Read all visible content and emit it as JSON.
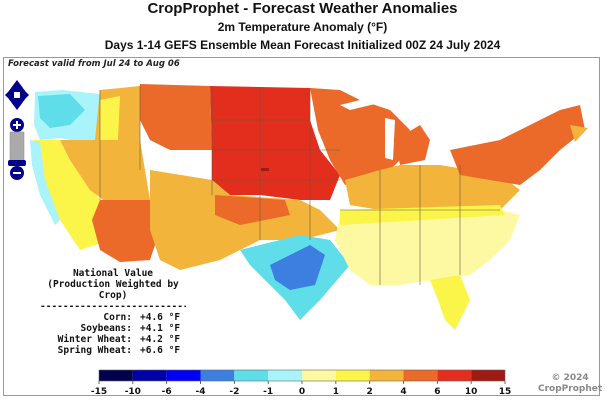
{
  "header": {
    "title": "CropProphet - Forecast Weather Anomalies",
    "subtitle": "2m Temperature Anomaly (°F)",
    "subtitle2": "Days 1-14 GEFS Ensemble Mean Forecast Initialized 00Z 24 July 2024"
  },
  "map": {
    "valid_text": "Forecast valid from Jul 24 to Aug 06",
    "nav_controls": [
      "pan-up",
      "pan-left",
      "pan-right",
      "pan-down",
      "zoom-in",
      "zoom-out"
    ],
    "regions": [
      {
        "name": "pacific-northwest",
        "bin": "-1 to 0"
      },
      {
        "name": "northern-rockies",
        "bin": "2 to 4"
      },
      {
        "name": "northern-plains",
        "bin": "6 to 10"
      },
      {
        "name": "upper-midwest",
        "bin": "4 to 6"
      },
      {
        "name": "great-lakes",
        "bin": "2 to 4"
      },
      {
        "name": "northeast",
        "bin": "4 to 6"
      },
      {
        "name": "california",
        "bin": "1 to 2"
      },
      {
        "name": "southwest",
        "bin": "4 to 6"
      },
      {
        "name": "southern-plains",
        "bin": "2 to 4"
      },
      {
        "name": "texas-gulf",
        "bin": "-4 to -2"
      },
      {
        "name": "southeast",
        "bin": "0 to 1"
      },
      {
        "name": "florida",
        "bin": "1 to 2"
      }
    ]
  },
  "national": {
    "title": "National Value",
    "subtitle": "(Production Weighted by Crop)",
    "dashes": "--------------------------",
    "rows": [
      {
        "label": "Corn:",
        "value": "+4.6 °F"
      },
      {
        "label": "Soybeans:",
        "value": "+4.1 °F"
      },
      {
        "label": "Winter Wheat:",
        "value": "+4.2 °F"
      },
      {
        "label": "Spring Wheat:",
        "value": "+6.6 °F"
      }
    ]
  },
  "legend": {
    "ticks": [
      "-15",
      "-10",
      "-6",
      "-4",
      "-2",
      "-1",
      "0",
      "1",
      "2",
      "4",
      "6",
      "10",
      "15"
    ],
    "colors": [
      "#00004f",
      "#0000a8",
      "#0000f5",
      "#3d7fe0",
      "#5fdde8",
      "#a8f4fa",
      "#fdf8a2",
      "#fbf54a",
      "#f2b43b",
      "#eb6a2a",
      "#e32e1e",
      "#9e1a12"
    ]
  },
  "copyright": {
    "line1": "© 2024",
    "line2": "CropProphet"
  }
}
